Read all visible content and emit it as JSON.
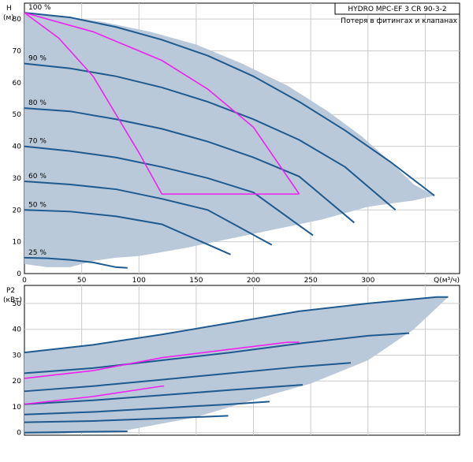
{
  "colors": {
    "envelope_fill": "#b9c9d9",
    "curve": "#1f5a8f",
    "loss_curve": "#ee22ee",
    "grid": "#cccccc",
    "frame": "#000000"
  },
  "chart_data": [
    {
      "type": "line",
      "title": "HYDRO MPC-EF 3 CR 90-3-2",
      "subtitle": "Потеря в фитингах и клапанах",
      "ylabel": "H",
      "yunit": "(м)",
      "xlabel": "Q(м³/ч)",
      "xlim": [
        0,
        380
      ],
      "ylim": [
        0,
        85
      ],
      "xticks": [
        0,
        50,
        100,
        150,
        200,
        250,
        300
      ],
      "yticks": [
        0,
        10,
        20,
        30,
        40,
        50,
        60,
        70,
        80
      ],
      "grid": true,
      "envelope": [
        [
          0,
          82
        ],
        [
          30,
          81
        ],
        [
          70,
          79
        ],
        [
          110,
          76
        ],
        [
          150,
          72
        ],
        [
          190,
          66
        ],
        [
          230,
          59
        ],
        [
          265,
          51
        ],
        [
          295,
          43
        ],
        [
          320,
          35
        ],
        [
          340,
          28
        ],
        [
          358,
          24.5
        ],
        [
          340,
          23
        ],
        [
          300,
          21
        ],
        [
          260,
          17
        ],
        [
          220,
          14
        ],
        [
          180,
          11
        ],
        [
          140,
          8
        ],
        [
          100,
          5.5
        ],
        [
          80,
          5
        ],
        [
          60,
          4
        ],
        [
          40,
          2
        ],
        [
          20,
          2
        ],
        [
          0,
          3
        ]
      ],
      "series": [
        {
          "name": "100 %",
          "x": [
            0,
            40,
            80,
            120,
            160,
            200,
            240,
            280,
            320,
            358
          ],
          "y": [
            82,
            80.5,
            77.5,
            73.5,
            68.5,
            62,
            54,
            45,
            35,
            24.5
          ]
        },
        {
          "name": "90 %",
          "x": [
            0,
            40,
            80,
            120,
            160,
            200,
            240,
            280,
            324
          ],
          "y": [
            66,
            64.5,
            62,
            58.5,
            54,
            48.5,
            42,
            33.5,
            20
          ]
        },
        {
          "name": "80 %",
          "x": [
            0,
            40,
            80,
            120,
            160,
            200,
            240,
            288
          ],
          "y": [
            52,
            51,
            48.5,
            45.5,
            41.5,
            36.5,
            30.5,
            16
          ]
        },
        {
          "name": "70 %",
          "x": [
            0,
            40,
            80,
            120,
            160,
            200,
            252
          ],
          "y": [
            40,
            38.5,
            36.5,
            33.5,
            30,
            25.5,
            12
          ]
        },
        {
          "name": "60 %",
          "x": [
            0,
            40,
            80,
            120,
            160,
            216
          ],
          "y": [
            29,
            28,
            26.5,
            23.5,
            20,
            9
          ]
        },
        {
          "name": "50 %",
          "x": [
            0,
            40,
            80,
            120,
            180
          ],
          "y": [
            20,
            19.5,
            18,
            15.5,
            6
          ]
        },
        {
          "name": "25 %",
          "x": [
            0,
            20,
            40,
            60,
            80,
            90
          ],
          "y": [
            5,
            4.8,
            4.3,
            3.5,
            2,
            1.8
          ]
        }
      ],
      "loss_curves": [
        {
          "x": [
            0,
            30,
            60,
            80,
            100,
            120,
            240
          ],
          "y": [
            82,
            74,
            62,
            50,
            38,
            25,
            25
          ]
        },
        {
          "x": [
            0,
            60,
            120,
            160,
            200,
            240
          ],
          "y": [
            82,
            76,
            67,
            58,
            46,
            25
          ]
        }
      ]
    },
    {
      "type": "line",
      "ylabel": "P2",
      "yunit": "(кВт)",
      "xlim": [
        0,
        380
      ],
      "ylim": [
        -1,
        57
      ],
      "yticks": [
        0,
        10,
        20,
        30,
        40,
        50
      ],
      "grid": true,
      "envelope": [
        [
          0,
          31
        ],
        [
          60,
          34
        ],
        [
          120,
          38
        ],
        [
          180,
          42.5
        ],
        [
          240,
          47
        ],
        [
          300,
          50
        ],
        [
          360,
          52.5
        ],
        [
          370,
          52.5
        ],
        [
          340,
          40
        ],
        [
          300,
          28
        ],
        [
          250,
          19
        ],
        [
          210,
          14
        ],
        [
          150,
          6
        ],
        [
          90,
          1
        ],
        [
          30,
          -0.5
        ],
        [
          0,
          -0.5
        ]
      ],
      "series": [
        {
          "name": "100 %",
          "x": [
            0,
            60,
            120,
            180,
            240,
            300,
            360,
            370
          ],
          "y": [
            31,
            34,
            38,
            42.5,
            47,
            50,
            52.5,
            52.5
          ]
        },
        {
          "name": "90 %",
          "x": [
            0,
            60,
            120,
            180,
            240,
            300,
            336
          ],
          "y": [
            23,
            25,
            28,
            31,
            34.5,
            37.5,
            38.5
          ]
        },
        {
          "name": "80 %",
          "x": [
            0,
            60,
            120,
            180,
            240,
            285
          ],
          "y": [
            16,
            18,
            20.5,
            23,
            25.5,
            27
          ]
        },
        {
          "name": "70 %",
          "x": [
            0,
            60,
            120,
            180,
            243
          ],
          "y": [
            11,
            12.5,
            14.5,
            16.5,
            18.5
          ]
        },
        {
          "name": "60 %",
          "x": [
            0,
            60,
            120,
            180,
            214
          ],
          "y": [
            7,
            8,
            9.5,
            11,
            12
          ]
        },
        {
          "name": "50 %",
          "x": [
            0,
            60,
            120,
            178
          ],
          "y": [
            4,
            4.5,
            5.5,
            6.5
          ]
        },
        {
          "name": "25 %",
          "x": [
            0,
            50,
            90
          ],
          "y": [
            0,
            0.3,
            0.5
          ]
        }
      ],
      "loss_curves": [
        {
          "x": [
            0,
            60,
            120,
            230,
            240
          ],
          "y": [
            21,
            24,
            29,
            35,
            35
          ]
        },
        {
          "x": [
            0,
            60,
            120,
            122
          ],
          "y": [
            11,
            14,
            18,
            18
          ]
        }
      ]
    }
  ]
}
